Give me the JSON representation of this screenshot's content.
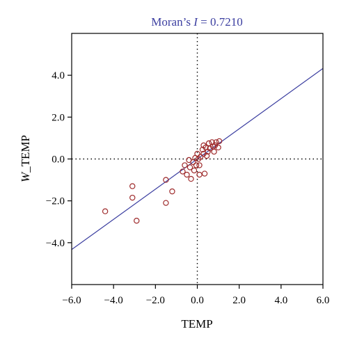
{
  "chart_data": {
    "type": "scatter",
    "title_prefix": "Moran’s ",
    "title_symbol": "I",
    "title_value": " = 0.7210",
    "xlabel": "TEMP",
    "ylabel_italic": "W",
    "ylabel_rest": "_TEMP",
    "xlim": [
      -6,
      6
    ],
    "ylim": [
      -6,
      6
    ],
    "x_ticks": [
      -6,
      -4,
      -2,
      0,
      2,
      4,
      6
    ],
    "x_tick_labels": [
      "−6.0",
      "−4.0",
      "−2.0",
      "0.0",
      "2.0",
      "4.0",
      "6.0"
    ],
    "y_ticks": [
      -4,
      -2,
      0,
      2,
      4
    ],
    "y_tick_labels": [
      "−4.0",
      "−2.0",
      "0.0",
      "2.0",
      "4.0"
    ],
    "grid": false,
    "zero_lines": "dotted",
    "regression_line": {
      "slope": 0.721,
      "intercept": 0
    },
    "colors": {
      "title": "#3b3ea0",
      "regression_line": "#3b3ea0",
      "points": "#9e2a2b",
      "axes": "#000000"
    },
    "points": [
      [
        -4.4,
        -2.5
      ],
      [
        -3.1,
        -1.3
      ],
      [
        -3.1,
        -1.85
      ],
      [
        -2.9,
        -2.95
      ],
      [
        -1.5,
        -1.0
      ],
      [
        -1.5,
        -2.1
      ],
      [
        -1.2,
        -1.55
      ],
      [
        -0.7,
        -0.6
      ],
      [
        -0.6,
        -0.3
      ],
      [
        -0.5,
        -0.75
      ],
      [
        -0.4,
        -0.05
      ],
      [
        -0.35,
        -0.4
      ],
      [
        -0.3,
        -0.95
      ],
      [
        -0.2,
        -0.15
      ],
      [
        -0.15,
        -0.55
      ],
      [
        -0.1,
        0.05
      ],
      [
        -0.05,
        -0.3
      ],
      [
        0.0,
        0.25
      ],
      [
        0.05,
        0.0
      ],
      [
        0.1,
        -0.75
      ],
      [
        0.1,
        -0.3
      ],
      [
        0.15,
        0.1
      ],
      [
        0.25,
        0.45
      ],
      [
        0.3,
        0.65
      ],
      [
        0.3,
        0.25
      ],
      [
        0.35,
        -0.7
      ],
      [
        0.4,
        0.55
      ],
      [
        0.45,
        0.15
      ],
      [
        0.5,
        0.35
      ],
      [
        0.55,
        0.75
      ],
      [
        0.6,
        0.5
      ],
      [
        0.7,
        0.8
      ],
      [
        0.75,
        0.6
      ],
      [
        0.8,
        0.35
      ],
      [
        0.85,
        0.65
      ],
      [
        0.9,
        0.8
      ],
      [
        1.0,
        0.55
      ],
      [
        1.05,
        0.85
      ]
    ]
  }
}
